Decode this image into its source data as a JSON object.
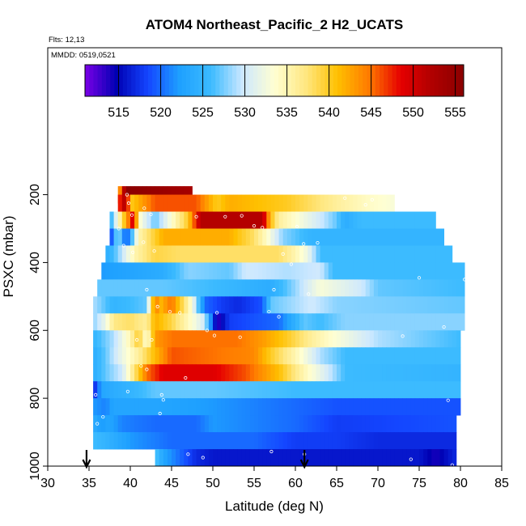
{
  "chart_data": {
    "type": "heatmap",
    "title": "ATOM4 Northeast_Pacific_2 H2_UCATS",
    "subtitle_flights": "Flts: 12,13",
    "subtitle_dates": "MMDD: 0519,0521",
    "xlabel": "Latitude (deg N)",
    "ylabel": "PSXC (mbar)",
    "xlim": [
      30,
      85
    ],
    "ylim": [
      1000,
      100
    ],
    "x_ticks": [
      30,
      35,
      40,
      45,
      50,
      55,
      60,
      65,
      70,
      75,
      80,
      85
    ],
    "y_ticks": [
      200,
      400,
      600,
      800,
      1000
    ],
    "colorbar": {
      "min": 511,
      "max": 556,
      "ticks": [
        515,
        520,
        525,
        530,
        535,
        540,
        545,
        550,
        555
      ],
      "stops": [
        "#7a00e6",
        "#0000b3",
        "#1446ff",
        "#1ea0ff",
        "#3cbbff",
        "#cde8ff",
        "#ffffd2",
        "#ffe780",
        "#ffc000",
        "#ff7a00",
        "#e60000",
        "#b00000",
        "#8a0000"
      ]
    },
    "markers": [
      34.7,
      61.1
    ],
    "rows": [
      {
        "p": 200,
        "x0": 38.5,
        "x1": 47.5,
        "v0": 536,
        "v1": 556,
        "xs": [
          38.5,
          39.5,
          48,
          53,
          57,
          62,
          64.5,
          65.5,
          66,
          67
        ],
        "vs": [
          540,
          556,
          553,
          548,
          546,
          542,
          540,
          533,
          540,
          532
        ]
      },
      {
        "p": 225,
        "x0": 38.5,
        "x1": 72,
        "xs": [
          38.5,
          39.5,
          40,
          43,
          48,
          50.5,
          52,
          59,
          65,
          69,
          72
        ],
        "vs": [
          546,
          553,
          540,
          546,
          546,
          540,
          542,
          540,
          536,
          534,
          533
        ]
      },
      {
        "p": 275,
        "x0": 37.5,
        "x1": 77,
        "xs": [
          37.5,
          39,
          40.5,
          41,
          43,
          47,
          48.5,
          56,
          57,
          58,
          63,
          65,
          66,
          68,
          77
        ],
        "vs": [
          524,
          538,
          551,
          534,
          527,
          540,
          552,
          552,
          541,
          536,
          530,
          527,
          524,
          526,
          526
        ]
      },
      {
        "p": 325,
        "x0": 37.5,
        "x1": 78,
        "xs": [
          37.5,
          38.5,
          39.5,
          41,
          44,
          52,
          55,
          56.5,
          58.5,
          62,
          78
        ],
        "vs": [
          516,
          530,
          518,
          535,
          542,
          542,
          538,
          534,
          528,
          525,
          525
        ]
      },
      {
        "p": 375,
        "x0": 37,
        "x1": 79,
        "xs": [
          37,
          38,
          40.5,
          43,
          46,
          58,
          60,
          61.5,
          63,
          79
        ],
        "vs": [
          524,
          526,
          535,
          539,
          538,
          538,
          535,
          532,
          526,
          526
        ]
      },
      {
        "p": 425,
        "x0": 36.5,
        "x1": 80.5,
        "xs": [
          36.5,
          44,
          47,
          52,
          54,
          59,
          63,
          64.5,
          80.5
        ],
        "vs": [
          522,
          524,
          528,
          527,
          530,
          529,
          530,
          526,
          526
        ]
      },
      {
        "p": 475,
        "x0": 36,
        "x1": 80.5,
        "xs": [
          36,
          44,
          50,
          57,
          58.5,
          63,
          68,
          70,
          80.5
        ],
        "vs": [
          527,
          527,
          526,
          524,
          526,
          533,
          530,
          527,
          526
        ]
      },
      {
        "p": 525,
        "x0": 35.5,
        "x1": 80.5,
        "xs": [
          35.5,
          38,
          42,
          43,
          43.5,
          45,
          47.5,
          49,
          51,
          53,
          56,
          57,
          62,
          65,
          80.5
        ],
        "vs": [
          529,
          525,
          527,
          546,
          541,
          545,
          533,
          520,
          518,
          517,
          519,
          527,
          530,
          528,
          527
        ]
      },
      {
        "p": 575,
        "x0": 35.5,
        "x1": 80.5,
        "xs": [
          35.5,
          37,
          38,
          40,
          42,
          43,
          45,
          49,
          50.5,
          52,
          55,
          58,
          61,
          63,
          66,
          80.5
        ],
        "vs": [
          528,
          532,
          537,
          538,
          536,
          542,
          539,
          530,
          513,
          518,
          519,
          520,
          527,
          526,
          528,
          528
        ]
      },
      {
        "p": 625,
        "x0": 35.5,
        "x1": 80,
        "xs": [
          35.5,
          38,
          40,
          41,
          42,
          43,
          45,
          50,
          53,
          56,
          59,
          62,
          64,
          70,
          80
        ],
        "vs": [
          525,
          529,
          535,
          540,
          533,
          543,
          545,
          545,
          545,
          543,
          540,
          536,
          534,
          529,
          526
        ]
      },
      {
        "p": 675,
        "x0": 35.5,
        "x1": 80,
        "xs": [
          35.5,
          37,
          39,
          41,
          42.5,
          45,
          50,
          55,
          57,
          60,
          63,
          66,
          80
        ],
        "vs": [
          524,
          527,
          532,
          536,
          540,
          546,
          545,
          544,
          540,
          535,
          529,
          526,
          526
        ]
      },
      {
        "p": 725,
        "x0": 35.5,
        "x1": 80,
        "xs": [
          35.5,
          37,
          39,
          40,
          42,
          44,
          50,
          54,
          58,
          61,
          64,
          66,
          80
        ],
        "vs": [
          524,
          527,
          530,
          535,
          545,
          549,
          549,
          546,
          541,
          535,
          530,
          526,
          525
        ]
      },
      {
        "p": 775,
        "x0": 35.5,
        "x1": 80,
        "xs": [
          35.5,
          36.5,
          38,
          40,
          43,
          50,
          60,
          80
        ],
        "vs": [
          516,
          523,
          524,
          525,
          527,
          527,
          526,
          526
        ]
      },
      {
        "p": 825,
        "x0": 35.5,
        "x1": 80,
        "xs": [
          35.5,
          37,
          38,
          43,
          50,
          55,
          60,
          65,
          80
        ],
        "vs": [
          522,
          521,
          523,
          523,
          522,
          521,
          520,
          519,
          519
        ]
      },
      {
        "p": 875,
        "x0": 35.5,
        "x1": 79.5,
        "xs": [
          35.5,
          36.5,
          37.5,
          39,
          43,
          48,
          50,
          60,
          65,
          79.5
        ],
        "vs": [
          524,
          522,
          523,
          521,
          520,
          520,
          522,
          520,
          518,
          519
        ]
      },
      {
        "p": 925,
        "x0": 35.5,
        "x1": 79.5,
        "xs": [
          35.5,
          37,
          40,
          45,
          55,
          60,
          65,
          70,
          75,
          79.5
        ],
        "vs": [
          526,
          525,
          522,
          520,
          520,
          518,
          518,
          517,
          517,
          517
        ]
      },
      {
        "p": 975,
        "x0": 43,
        "x1": 79.5,
        "xs": [
          43,
          44,
          46,
          48,
          50,
          55,
          60,
          65,
          70,
          75,
          77,
          79.5
        ],
        "vs": [
          527,
          523,
          520,
          517,
          516,
          516,
          516,
          516,
          516,
          516,
          514,
          517
        ]
      }
    ],
    "points": [
      [
        39.6,
        200
      ],
      [
        39.8,
        225
      ],
      [
        41.7,
        240
      ],
      [
        40.2,
        260
      ],
      [
        42.5,
        258
      ],
      [
        48.0,
        265
      ],
      [
        51.5,
        265
      ],
      [
        53.5,
        262
      ],
      [
        55.0,
        292
      ],
      [
        56.0,
        297
      ],
      [
        60.2,
        294
      ],
      [
        66.0,
        210
      ],
      [
        69.3,
        215
      ],
      [
        68.5,
        230
      ],
      [
        38.6,
        300
      ],
      [
        41.6,
        340
      ],
      [
        39.2,
        350
      ],
      [
        40.3,
        370
      ],
      [
        42.9,
        366
      ],
      [
        58.5,
        375
      ],
      [
        59.5,
        405
      ],
      [
        62.7,
        342
      ],
      [
        61.0,
        345
      ],
      [
        75.0,
        445
      ],
      [
        80.5,
        450
      ],
      [
        42.0,
        480
      ],
      [
        57.4,
        480
      ],
      [
        61.6,
        493
      ],
      [
        35.2,
        550
      ],
      [
        43.3,
        530
      ],
      [
        44.8,
        545
      ],
      [
        46.0,
        548
      ],
      [
        50.5,
        548
      ],
      [
        56.8,
        545
      ],
      [
        58.0,
        560
      ],
      [
        49.3,
        600
      ],
      [
        50.2,
        615
      ],
      [
        53.3,
        620
      ],
      [
        73.0,
        617
      ],
      [
        78.0,
        590
      ],
      [
        81.0,
        600
      ],
      [
        40.8,
        628
      ],
      [
        42.6,
        628
      ],
      [
        41.3,
        705
      ],
      [
        42.0,
        715
      ],
      [
        46.7,
        740
      ],
      [
        35.8,
        790
      ],
      [
        39.7,
        780
      ],
      [
        43.8,
        790
      ],
      [
        44.0,
        805
      ],
      [
        78.5,
        806
      ],
      [
        36.0,
        875
      ],
      [
        36.7,
        855
      ],
      [
        43.6,
        845
      ],
      [
        47.0,
        965
      ],
      [
        48.8,
        975
      ],
      [
        57.1,
        957
      ],
      [
        61.1,
        965
      ],
      [
        74.0,
        980
      ],
      [
        79.0,
        997
      ]
    ]
  }
}
